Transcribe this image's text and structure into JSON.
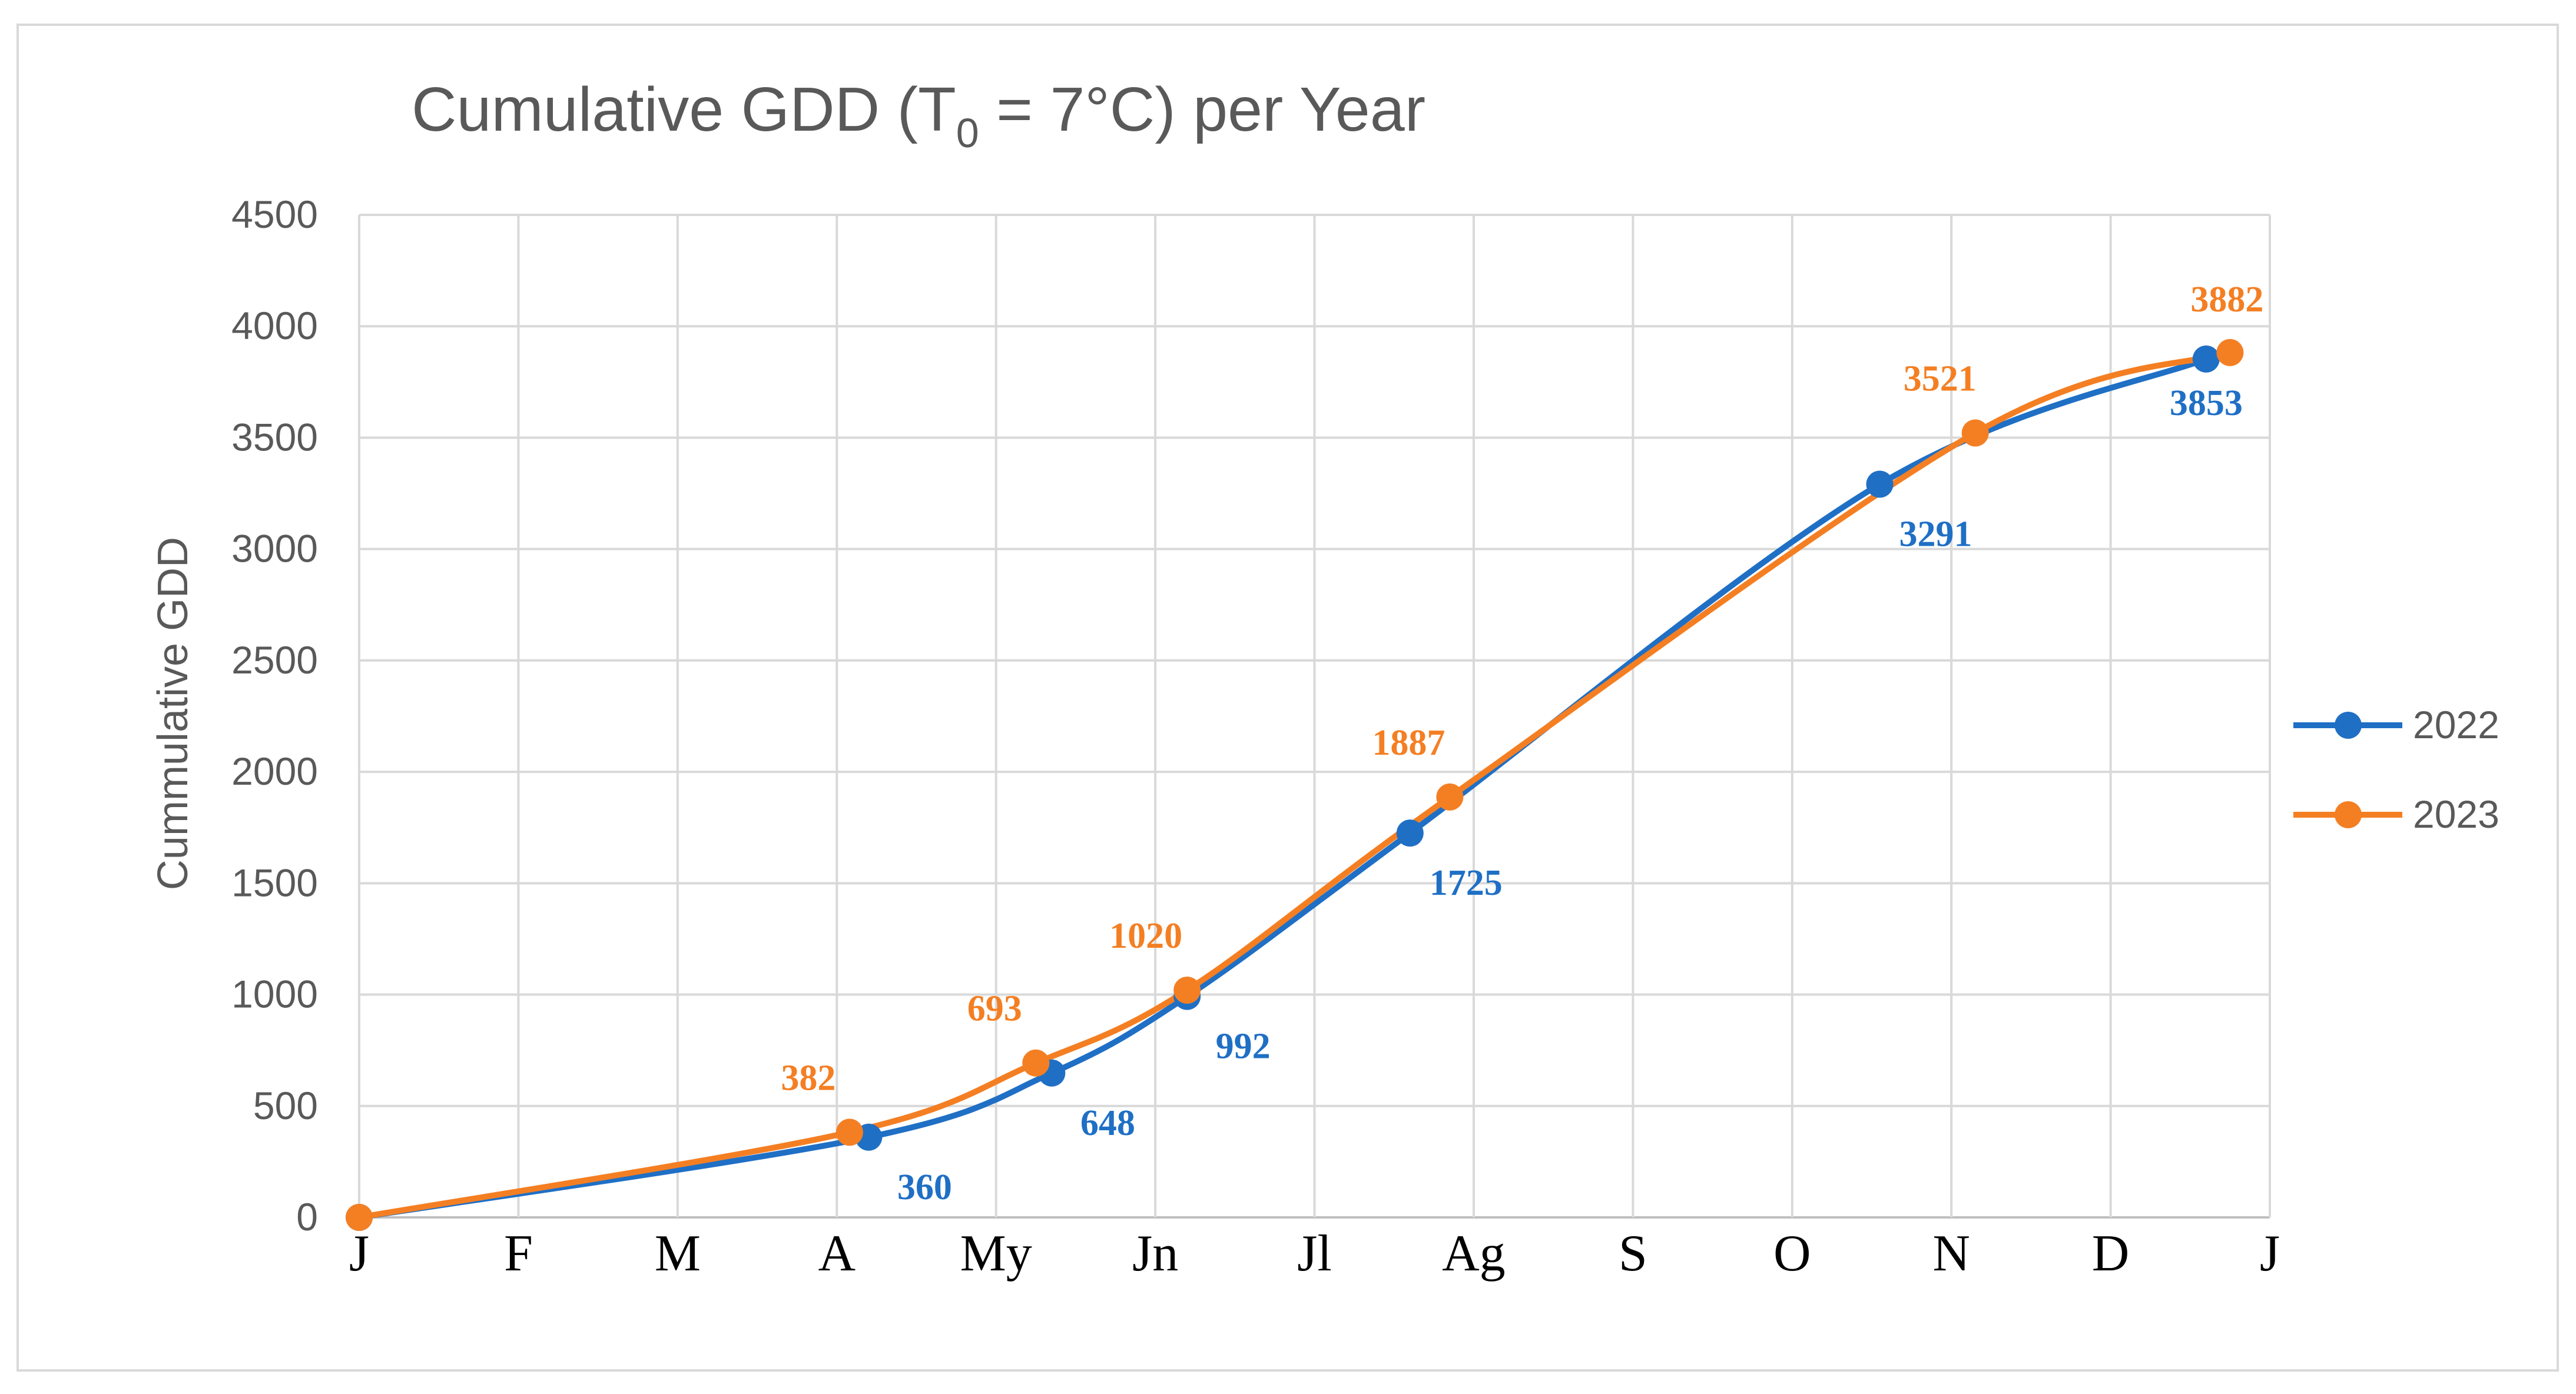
{
  "chart_data": {
    "type": "line",
    "title": "Cumulative GDD (T",
    "title_subscript": "0",
    "title_suffix": " = 7°C) per Year",
    "xlabel": "",
    "ylabel": "Cummulative GDD",
    "ylim": [
      0,
      4500
    ],
    "yticks": [
      "0",
      "500",
      "1000",
      "1500",
      "2000",
      "2500",
      "3000",
      "3500",
      "4000",
      "4500"
    ],
    "categories": [
      "J",
      "F",
      "M",
      "A",
      "My",
      "Jn",
      "Jl",
      "Ag",
      "S",
      "O",
      "N",
      "D",
      "J"
    ],
    "xlim": [
      0,
      12
    ],
    "grid": true,
    "legend_position": "right",
    "series": [
      {
        "name": "2022",
        "color": "#1f6fc5",
        "points": [
          {
            "x": 0.0,
            "y": 0,
            "label": ""
          },
          {
            "x": 3.2,
            "y": 360,
            "label": "360"
          },
          {
            "x": 4.35,
            "y": 648,
            "label": "648"
          },
          {
            "x": 5.2,
            "y": 992,
            "label": "992"
          },
          {
            "x": 6.6,
            "y": 1725,
            "label": "1725"
          },
          {
            "x": 9.55,
            "y": 3291,
            "label": "3291"
          },
          {
            "x": 11.6,
            "y": 3853,
            "label": "3853"
          }
        ]
      },
      {
        "name": "2023",
        "color": "#f47f23",
        "points": [
          {
            "x": 0.0,
            "y": 0,
            "label": ""
          },
          {
            "x": 3.08,
            "y": 382,
            "label": "382"
          },
          {
            "x": 4.25,
            "y": 693,
            "label": "693"
          },
          {
            "x": 5.2,
            "y": 1020,
            "label": "1020"
          },
          {
            "x": 6.85,
            "y": 1887,
            "label": "1887"
          },
          {
            "x": 10.15,
            "y": 3521,
            "label": "3521"
          },
          {
            "x": 11.75,
            "y": 3882,
            "label": "3882"
          }
        ]
      }
    ]
  }
}
